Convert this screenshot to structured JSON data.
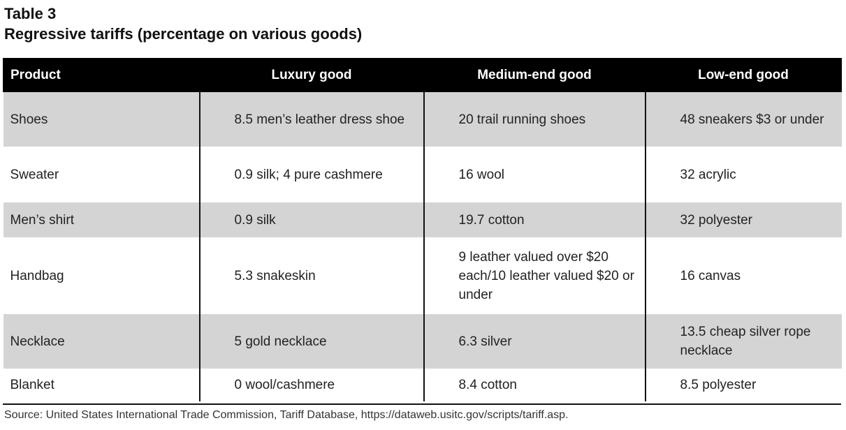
{
  "header": {
    "table_label": "Table 3",
    "table_title": "Regressive tariffs (percentage on various goods)"
  },
  "table": {
    "columns": [
      "Product",
      "Luxury good",
      "Medium-end good",
      "Low-end good"
    ],
    "rows": [
      {
        "product": "Shoes",
        "luxury": "8.5 men’s leather dress shoe",
        "medium": "20 trail running shoes",
        "low": "48 sneakers $3 or under"
      },
      {
        "product": "Sweater",
        "luxury": "0.9 silk; 4 pure cashmere",
        "medium": "16 wool",
        "low": "32 acrylic"
      },
      {
        "product": "Men’s shirt",
        "luxury": "0.9 silk",
        "medium": "19.7 cotton",
        "low": "32 polyester"
      },
      {
        "product": "Handbag",
        "luxury": "5.3 snakeskin",
        "medium": "9 leather valued over $20 each/10 leather valued $20 or under",
        "low": "16 canvas"
      },
      {
        "product": "Necklace",
        "luxury": "5 gold necklace",
        "medium": "6.3 silver",
        "low": "13.5 cheap silver rope necklace"
      },
      {
        "product": "Blanket",
        "luxury": "0 wool/cashmere",
        "medium": "8.4 cotton",
        "low": "8.5 polyester"
      }
    ]
  },
  "footer": {
    "source": "Source: United States International Trade Commission, Tariff Database, https://dataweb.usitc.gov/scripts/tariff.asp."
  },
  "colors": {
    "header_bg": "#000000",
    "header_text": "#ffffff",
    "shaded_row": "#d4d4d4",
    "plain_row": "#ffffff"
  }
}
